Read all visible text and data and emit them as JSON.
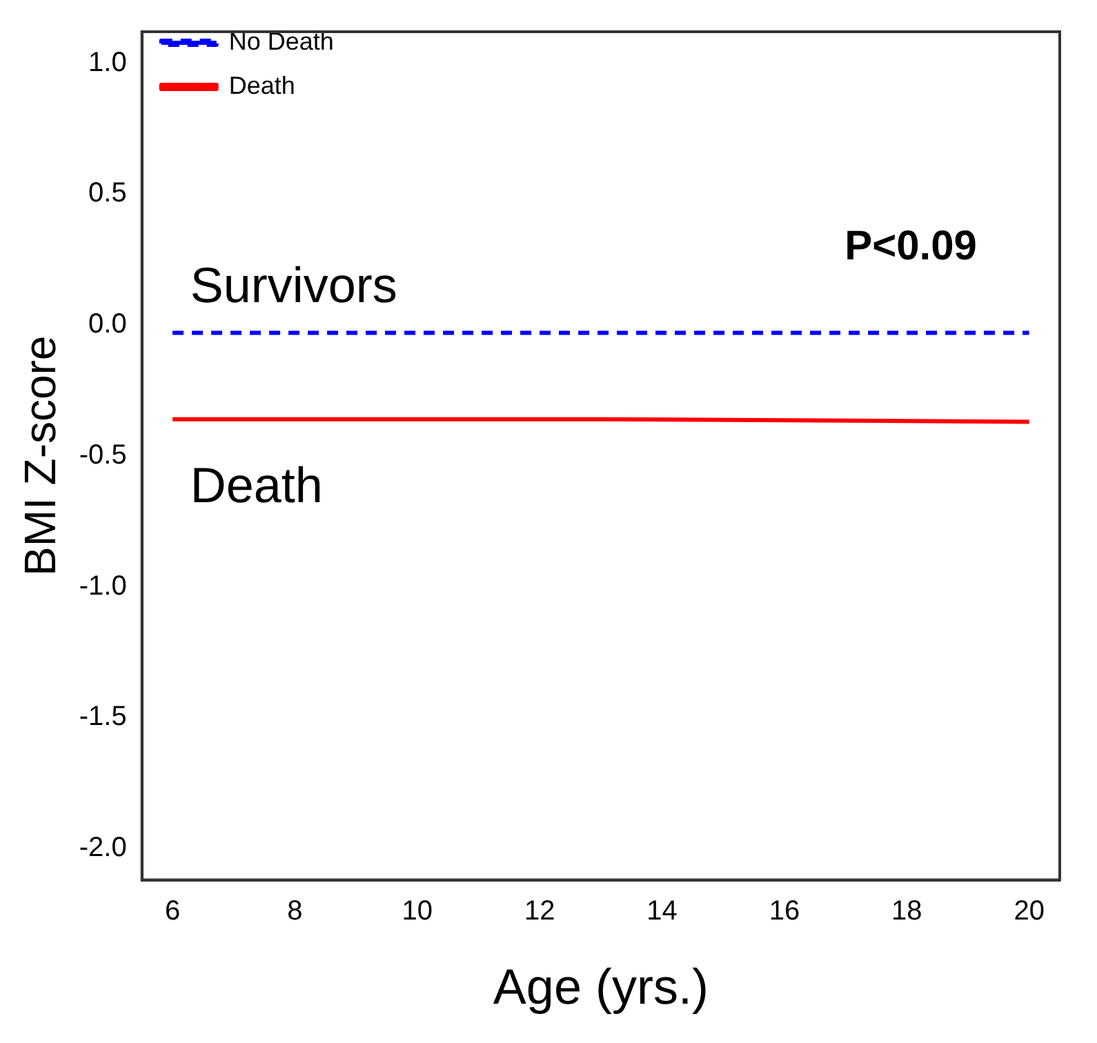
{
  "chart_data": {
    "type": "line",
    "xlabel": "Age (yrs.)",
    "ylabel": "BMI Z-score",
    "xlim": [
      5.5,
      20.5
    ],
    "xticks": [
      6,
      8,
      10,
      12,
      14,
      16,
      18,
      20
    ],
    "ylim": [
      -2.12,
      1.12
    ],
    "yticks": [
      {
        "value": -2,
        "label": "-2.0"
      },
      -1.5,
      {
        "value": -1,
        "label": "-1.0"
      },
      -0.5,
      {
        "value": 0,
        "label": "0.0"
      },
      0.5,
      {
        "value": 1,
        "label": "1.0"
      }
    ],
    "series": [
      {
        "name": "No Death",
        "color": "#0000ff",
        "line_style": "dashed",
        "x": [
          6,
          13,
          20
        ],
        "values": [
          -0.03,
          -0.03,
          -0.03
        ]
      },
      {
        "name": "Death",
        "color": "#ff0000",
        "line_style": "solid",
        "x": [
          6,
          13,
          20
        ],
        "values": [
          -0.36,
          -0.36,
          -0.37
        ]
      }
    ],
    "annotations": [
      "P<0.09",
      "Survivors",
      "Death"
    ],
    "legend": "top left",
    "grid": false,
    "marker": "none"
  }
}
